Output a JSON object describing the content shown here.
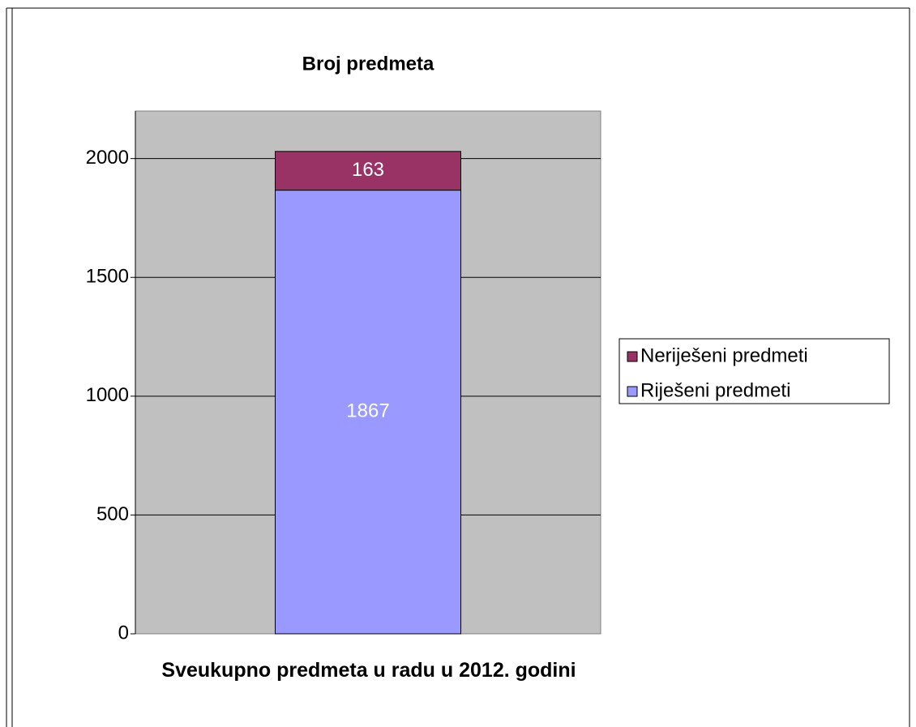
{
  "chart_data": {
    "type": "stacked_bar",
    "title": "Broj predmeta",
    "categories": [
      "Sveukupno predmeta u radu u 2012. godini"
    ],
    "series": [
      {
        "name": "Riješeni predmeti",
        "color": "#9999ff",
        "values": [
          1867
        ]
      },
      {
        "name": "Neriješeni predmeti",
        "color": "#993366",
        "values": [
          163
        ]
      }
    ],
    "ylim": [
      0,
      2200
    ],
    "yticks": [
      0,
      500,
      1000,
      1500,
      2000
    ],
    "grid": true,
    "legend": "right"
  }
}
